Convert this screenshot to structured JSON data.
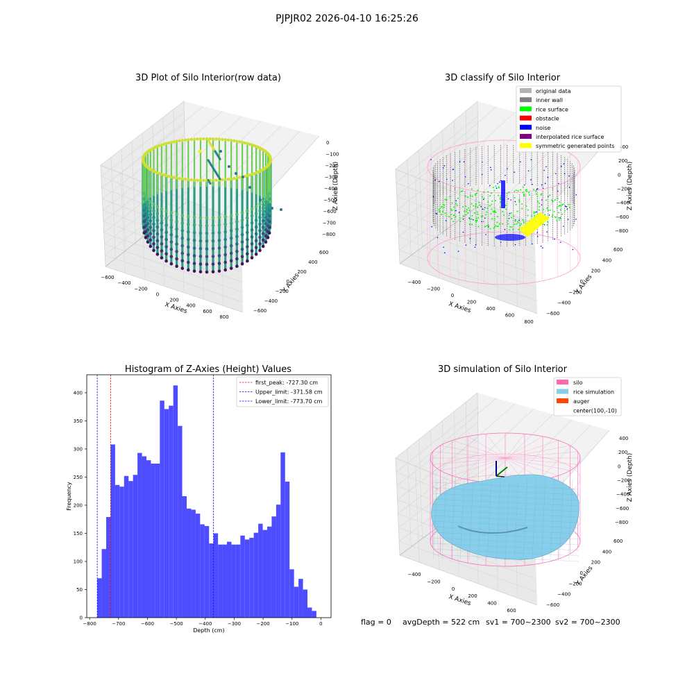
{
  "suptitle": "PJPJR02 2026-04-10 16:25:26",
  "status_line": {
    "flag": "flag = 0",
    "avg_depth": "avgDepth = 522 cm",
    "sv1": "sv1 = 700~2300",
    "sv2": "sv2 = 700~2300"
  },
  "colors": {
    "original_data": "#b3b3b3",
    "inner_wall": "#808080",
    "rice_surface": "#00ff00",
    "obstacle": "#ff0000",
    "noise": "#0000ff",
    "interpolated_rice_surface": "#800080",
    "symmetric_generated_points": "#ffff00",
    "silo": "#ff69b4",
    "rice_simulation": "#87ceeb",
    "auger": "#ff4500",
    "histogram_bar": "#4d4dff"
  },
  "panels": {
    "raw": {
      "title": "3D Plot of Silo Interior(row data)",
      "xlabel": "X Axies",
      "ylabel": "Y Axies",
      "zlabel": "Z Axies (Depth)",
      "xticks": [
        "−600",
        "−400",
        "−200",
        "0",
        "200",
        "400",
        "600",
        "800"
      ],
      "yticks": [
        "−600",
        "−400",
        "−200",
        "0",
        "200",
        "400",
        "600"
      ],
      "zticks": [
        "0",
        "−100",
        "−200",
        "−300",
        "−400",
        "−500",
        "−600",
        "−700",
        "−800"
      ]
    },
    "classify": {
      "title": "3D classify of Silo Interior",
      "xlabel": "X Axies",
      "ylabel": "Y Axies",
      "zlabel": "Z Axies (Depth)",
      "xticks": [
        "−400",
        "−200",
        "0",
        "200",
        "400",
        "600",
        "800"
      ],
      "yticks": [
        "−600",
        "−400",
        "−200",
        "0",
        "200",
        "400",
        "600"
      ],
      "zticks": [
        "400",
        "200",
        "0",
        "−200",
        "−400",
        "−600",
        "−800"
      ],
      "legend": [
        {
          "label": "original data",
          "color_key": "original_data"
        },
        {
          "label": "inner wall",
          "color_key": "inner_wall"
        },
        {
          "label": "rice surface",
          "color_key": "rice_surface"
        },
        {
          "label": "obstacle",
          "color_key": "obstacle"
        },
        {
          "label": "noise",
          "color_key": "noise"
        },
        {
          "label": "interpolated rice surface",
          "color_key": "interpolated_rice_surface"
        },
        {
          "label": "symmetric generated points",
          "color_key": "symmetric_generated_points"
        }
      ]
    },
    "simulation": {
      "title": "3D simulation of Silo Interior",
      "xlabel": "X Axies",
      "ylabel": "Y Axies",
      "zlabel": "Z Axies (Depth)",
      "xticks": [
        "−400",
        "−200",
        "0",
        "200",
        "400",
        "600"
      ],
      "yticks": [
        "−600",
        "−400",
        "−200",
        "0",
        "200",
        "400",
        "600"
      ],
      "zticks": [
        "400",
        "200",
        "0",
        "−200",
        "−400",
        "−600",
        "−800"
      ],
      "legend": [
        {
          "label": "silo",
          "color_key": "silo"
        },
        {
          "label": "rice simulation",
          "color_key": "rice_simulation"
        },
        {
          "label": "auger",
          "color_key": "auger"
        },
        {
          "label": "center(100,-10)",
          "color_key": ""
        }
      ]
    }
  },
  "chart_data": {
    "type": "bar",
    "title": "Histogram of Z-Axies (Height) Values",
    "xlabel": "Depth (cm)",
    "ylabel": "Frequency",
    "xlim": [
      -810,
      35
    ],
    "ylim": [
      0,
      432
    ],
    "xticks": [
      -800,
      -700,
      -600,
      -500,
      -400,
      -300,
      -200,
      -100,
      0
    ],
    "yticks": [
      0,
      50,
      100,
      150,
      200,
      250,
      300,
      350,
      400
    ],
    "bin_start": -773.7,
    "bin_width": 15.47,
    "values": [
      70,
      122,
      179,
      308,
      236,
      233,
      252,
      243,
      254,
      293,
      287,
      280,
      274,
      274,
      386,
      371,
      377,
      413,
      341,
      216,
      194,
      192,
      185,
      166,
      163,
      132,
      150,
      130,
      130,
      135,
      130,
      130,
      146,
      139,
      142,
      151,
      167,
      156,
      162,
      180,
      201,
      294,
      242,
      86,
      55,
      69,
      50,
      18,
      12
    ],
    "vlines": [
      {
        "label": "first_peak: -727.30 cm",
        "x": -727.3,
        "color": "#ff0000"
      },
      {
        "label": "Upper_limit: -371.58 cm",
        "x": -371.58,
        "color": "#0000ff"
      },
      {
        "label": "Lower_limit: -773.70 cm",
        "x": -773.7,
        "color": "#0000ff"
      }
    ],
    "legend_position": "top-right"
  }
}
